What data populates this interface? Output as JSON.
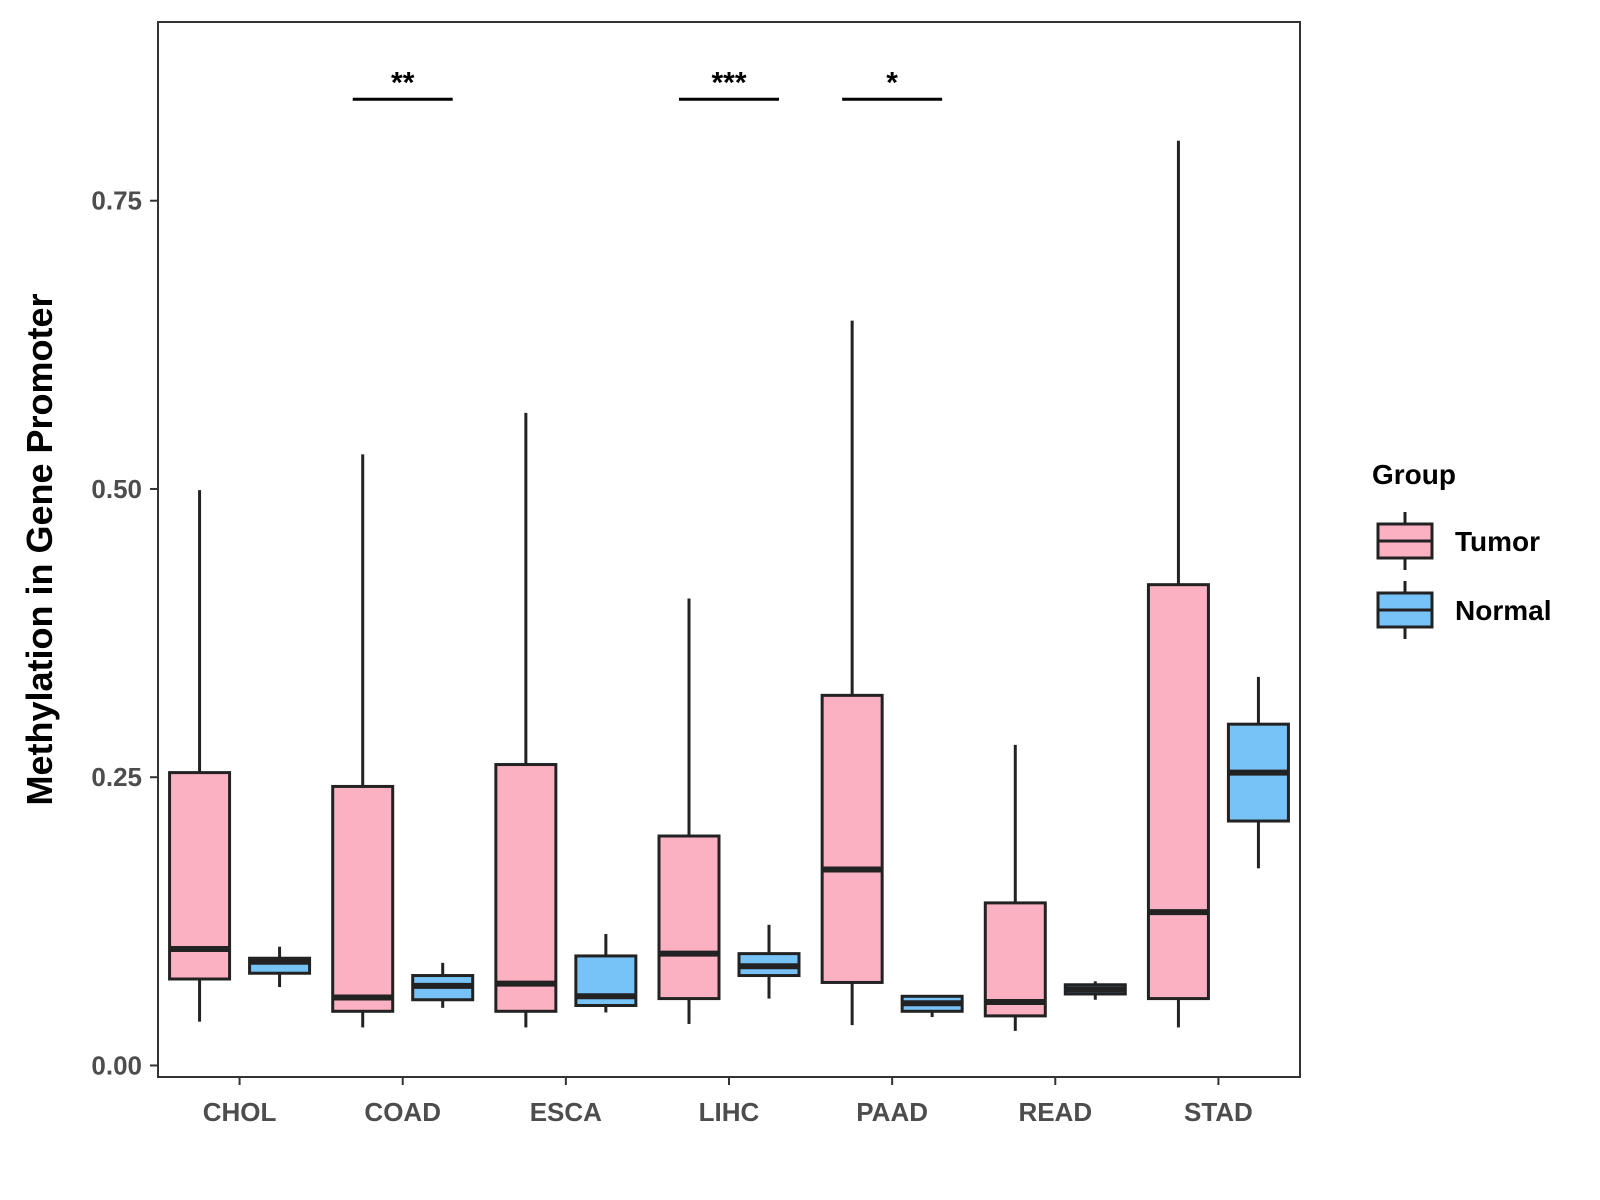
{
  "chart_data": {
    "type": "boxplot",
    "title": "",
    "xlabel": "",
    "ylabel": "Methylation in Gene Promoter",
    "ylim": [
      -0.01,
      0.905
    ],
    "yticks": [
      0.0,
      0.25,
      0.5,
      0.75
    ],
    "ytick_labels": [
      "0.00",
      "0.25",
      "0.50",
      "0.75"
    ],
    "categories": [
      "CHOL",
      "COAD",
      "ESCA",
      "LIHC",
      "PAAD",
      "READ",
      "STAD"
    ],
    "legend": {
      "title": "Group",
      "position": "right",
      "entries": [
        "Tumor",
        "Normal"
      ]
    },
    "colors": {
      "Tumor": "#fcb1c3",
      "Normal": "#77c3f8",
      "outline": "#222222"
    },
    "series": [
      {
        "name": "Tumor",
        "boxes": [
          {
            "category": "CHOL",
            "min": 0.038,
            "q1": 0.075,
            "median": 0.101,
            "q3": 0.254,
            "max": 0.499
          },
          {
            "category": "COAD",
            "min": 0.033,
            "q1": 0.047,
            "median": 0.059,
            "q3": 0.242,
            "max": 0.53
          },
          {
            "category": "ESCA",
            "min": 0.033,
            "q1": 0.047,
            "median": 0.071,
            "q3": 0.261,
            "max": 0.566
          },
          {
            "category": "LIHC",
            "min": 0.036,
            "q1": 0.058,
            "median": 0.097,
            "q3": 0.199,
            "max": 0.405
          },
          {
            "category": "PAAD",
            "min": 0.035,
            "q1": 0.072,
            "median": 0.17,
            "q3": 0.321,
            "max": 0.646
          },
          {
            "category": "READ",
            "min": 0.03,
            "q1": 0.043,
            "median": 0.055,
            "q3": 0.141,
            "max": 0.278
          },
          {
            "category": "STAD",
            "min": 0.033,
            "q1": 0.058,
            "median": 0.133,
            "q3": 0.417,
            "max": 0.802
          }
        ]
      },
      {
        "name": "Normal",
        "boxes": [
          {
            "category": "CHOL",
            "min": 0.068,
            "q1": 0.08,
            "median": 0.09,
            "q3": 0.093,
            "max": 0.103
          },
          {
            "category": "COAD",
            "min": 0.05,
            "q1": 0.057,
            "median": 0.069,
            "q3": 0.078,
            "max": 0.089
          },
          {
            "category": "ESCA",
            "min": 0.046,
            "q1": 0.052,
            "median": 0.06,
            "q3": 0.095,
            "max": 0.114
          },
          {
            "category": "LIHC",
            "min": 0.058,
            "q1": 0.078,
            "median": 0.086,
            "q3": 0.097,
            "max": 0.122
          },
          {
            "category": "PAAD",
            "min": 0.042,
            "q1": 0.047,
            "median": 0.054,
            "q3": 0.06,
            "max": 0.061
          },
          {
            "category": "READ",
            "min": 0.057,
            "q1": 0.062,
            "median": 0.066,
            "q3": 0.07,
            "max": 0.073
          },
          {
            "category": "STAD",
            "min": 0.171,
            "q1": 0.212,
            "median": 0.254,
            "q3": 0.296,
            "max": 0.337
          }
        ]
      }
    ],
    "significance": [
      {
        "category": "COAD",
        "label": "**",
        "y": 0.838
      },
      {
        "category": "LIHC",
        "label": "***",
        "y": 0.838
      },
      {
        "category": "PAAD",
        "label": "*",
        "y": 0.838
      }
    ]
  }
}
